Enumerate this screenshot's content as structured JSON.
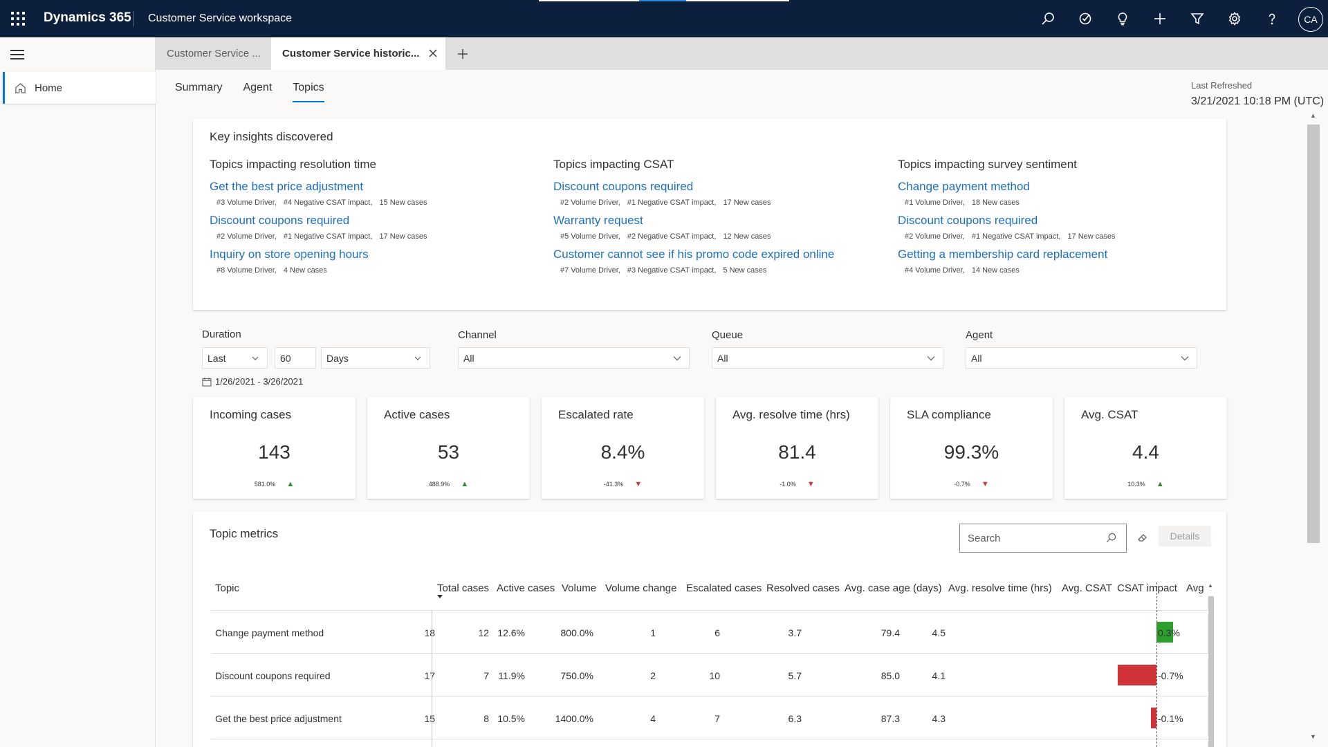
{
  "topbar": {
    "brand": "Dynamics 365",
    "app_name": "Customer Service workspace",
    "avatar_initials": "CA",
    "icons": [
      "search-icon",
      "task-icon",
      "lightbulb-icon",
      "add-icon",
      "filter-icon",
      "settings-icon",
      "help-icon"
    ]
  },
  "nav": {
    "home_label": "Home"
  },
  "session_tabs": {
    "inactive_label": "Customer Service ...",
    "active_label": "Customer Service historic..."
  },
  "page_tabs": {
    "summary": "Summary",
    "agent": "Agent",
    "topics": "Topics",
    "active": "Topics"
  },
  "refresh": {
    "label": "Last Refreshed",
    "value": "3/21/2021 10:18 PM (UTC)"
  },
  "insights": {
    "title": "Key insights discovered",
    "columns": [
      {
        "heading": "Topics impacting resolution time",
        "items": [
          {
            "title": "Get the best price adjustment",
            "tags": [
              "#3 Volume Driver,",
              "#4 Negative CSAT impact,",
              "15 New cases"
            ]
          },
          {
            "title": "Discount coupons required",
            "tags": [
              "#2 Volume Driver,",
              "#1 Negative CSAT impact,",
              "17 New cases"
            ]
          },
          {
            "title": "Inquiry on store opening hours",
            "tags": [
              "#8 Volume Driver,",
              "4 New cases"
            ]
          }
        ]
      },
      {
        "heading": "Topics impacting CSAT",
        "items": [
          {
            "title": "Discount coupons required",
            "tags": [
              "#2 Volume Driver,",
              "#1 Negative CSAT impact,",
              "17 New cases"
            ]
          },
          {
            "title": "Warranty request",
            "tags": [
              "#5 Volume Driver,",
              "#2 Negative CSAT impact,",
              "12 New cases"
            ]
          },
          {
            "title": "Customer cannot see if his promo code expired online",
            "tags": [
              "#7 Volume Driver,",
              "#3 Negative CSAT impact,",
              "5 New cases"
            ]
          }
        ]
      },
      {
        "heading": "Topics impacting survey sentiment",
        "items": [
          {
            "title": "Change payment method",
            "tags": [
              "#1 Volume Driver,",
              "18 New cases"
            ]
          },
          {
            "title": "Discount coupons required",
            "tags": [
              "#2 Volume Driver,",
              "#1 Negative CSAT impact,",
              "17 New cases"
            ]
          },
          {
            "title": "Getting a membership card replacement",
            "tags": [
              "#4 Volume Driver,",
              "14 New cases"
            ]
          }
        ]
      }
    ]
  },
  "filters": {
    "duration_label": "Duration",
    "duration_mode": "Last",
    "duration_value": "60",
    "duration_unit": "Days",
    "date_range": "1/26/2021 - 3/26/2021",
    "channel_label": "Channel",
    "channel_value": "All",
    "queue_label": "Queue",
    "queue_value": "All",
    "agent_label": "Agent",
    "agent_value": "All"
  },
  "kpis": [
    {
      "title": "Incoming cases",
      "value": "143",
      "delta": "581.0%",
      "trend": "up"
    },
    {
      "title": "Active cases",
      "value": "53",
      "delta": "488.9%",
      "trend": "up"
    },
    {
      "title": "Escalated rate",
      "value": "8.4%",
      "delta": "-41.3%",
      "trend": "down"
    },
    {
      "title": "Avg. resolve time (hrs)",
      "value": "81.4",
      "delta": "-1.0%",
      "trend": "down"
    },
    {
      "title": "SLA compliance",
      "value": "99.3%",
      "delta": "-0.7%",
      "trend": "down"
    },
    {
      "title": "Avg. CSAT",
      "value": "4.4",
      "delta": "10.3%",
      "trend": "up"
    }
  ],
  "metrics": {
    "title": "Topic metrics",
    "search_placeholder": "Search",
    "details_label": "Details",
    "columns": [
      "Topic",
      "Total cases",
      "Active cases",
      "Volume",
      "Volume change",
      "Escalated cases",
      "Resolved cases",
      "Avg. case age (days)",
      "Avg. resolve time (hrs)",
      "Avg. CSAT",
      "CSAT impact",
      "Avg"
    ],
    "rows": [
      {
        "topic": "Change payment method",
        "total": "18",
        "active": "12",
        "volume": "12.6%",
        "volume_change": "800.0%",
        "escalated": "1",
        "resolved": "6",
        "case_age": "3.7",
        "resolve_time": "79.4",
        "csat": "4.5",
        "csat_impact": "0.3%",
        "csat_impact_value": 0.3,
        "csat_color": "#2ca02c"
      },
      {
        "topic": "Discount coupons required",
        "total": "17",
        "active": "7",
        "volume": "11.9%",
        "volume_change": "750.0%",
        "escalated": "2",
        "resolved": "10",
        "case_age": "5.7",
        "resolve_time": "85.0",
        "csat": "4.1",
        "csat_impact": "-0.7%",
        "csat_impact_value": -0.7,
        "csat_color": "#d13438"
      },
      {
        "topic": "Get the best price adjustment",
        "total": "15",
        "active": "8",
        "volume": "10.5%",
        "volume_change": "1400.0%",
        "escalated": "4",
        "resolved": "7",
        "case_age": "6.3",
        "resolve_time": "87.3",
        "csat": "4.3",
        "csat_impact": "-0.1%",
        "csat_impact_value": -0.1,
        "csat_color": "#d13438"
      }
    ]
  }
}
